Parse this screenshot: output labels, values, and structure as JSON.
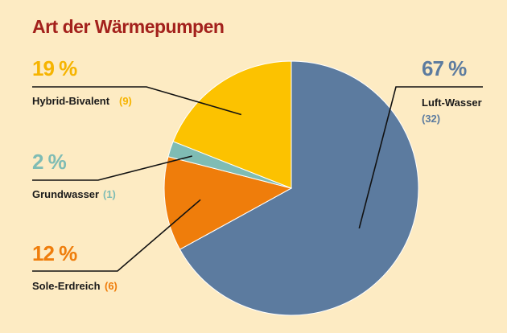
{
  "chart_data": {
    "type": "pie",
    "title": "Art der Wärmepumpen",
    "slices": [
      {
        "label": "Luft-Wasser",
        "percent_label": "67 %",
        "count_label": "(32)",
        "value": 67,
        "count": 32,
        "color": "#5c7b9f",
        "pct_color": "#5c7b9f",
        "count_color": "#5c7b9f"
      },
      {
        "label": "Sole-Erdreich",
        "percent_label": "12 %",
        "count_label": "(6)",
        "value": 12,
        "count": 6,
        "color": "#ef7d0b",
        "pct_color": "#ef7d0b",
        "count_color": "#ef7d0b"
      },
      {
        "label": "Grundwasser",
        "percent_label": "2 %",
        "count_label": "(1)",
        "value": 2,
        "count": 1,
        "color": "#7fbcb4",
        "pct_color": "#7fbcb4",
        "count_color": "#7fbcb4"
      },
      {
        "label": "Hybrid-Bivalent",
        "percent_label": "19 %",
        "count_label": "(9)",
        "value": 19,
        "count": 9,
        "color": "#fcc200",
        "pct_color": "#f6b400",
        "count_color": "#f6b400"
      }
    ]
  }
}
